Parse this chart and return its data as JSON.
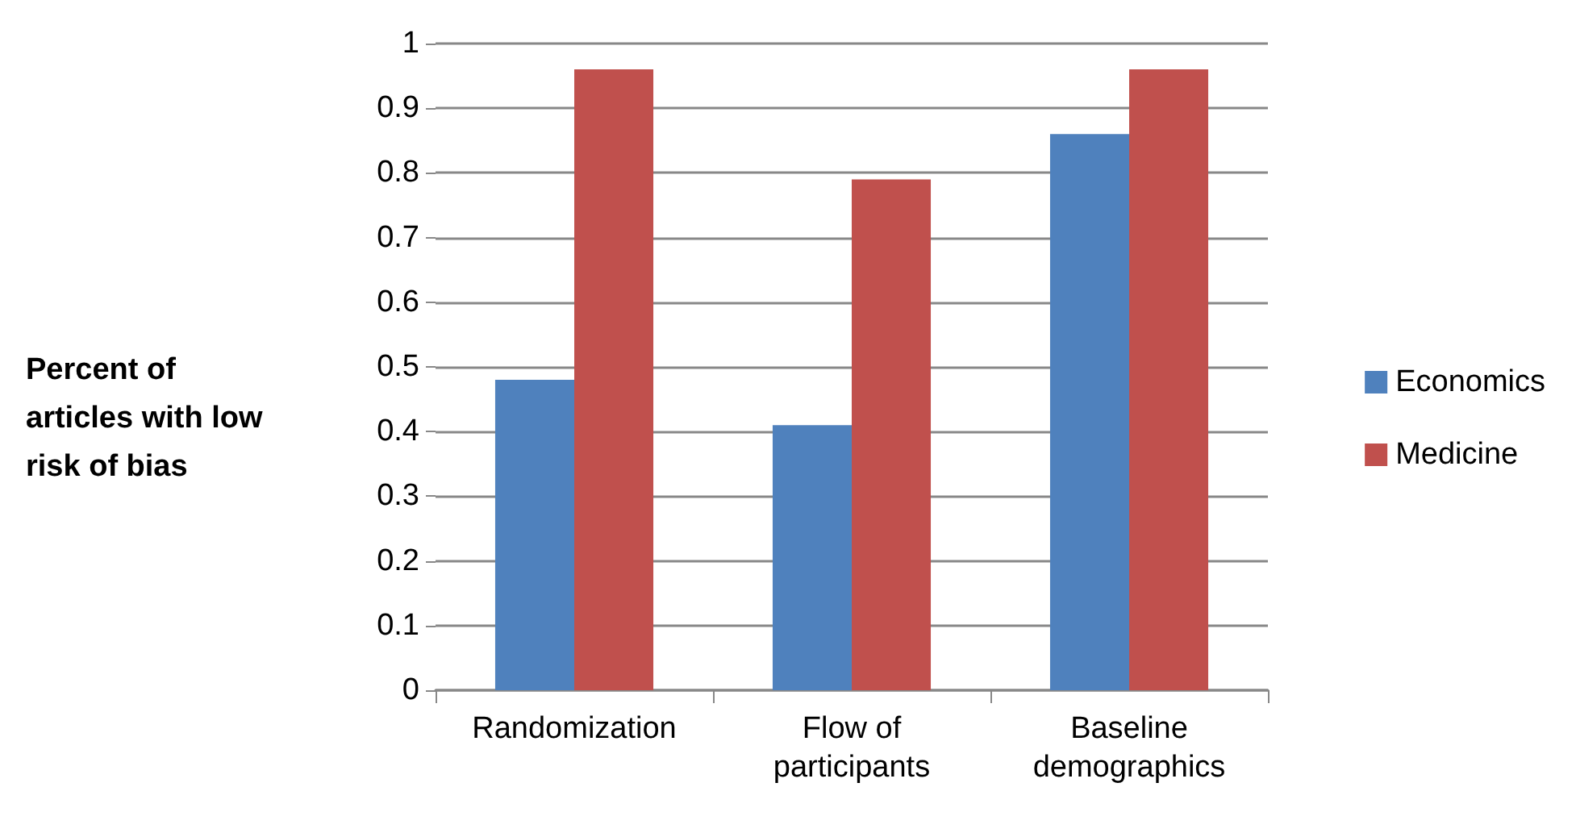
{
  "chart_data": {
    "type": "bar",
    "ylabel": "Percent of\narticles with low\nrisk of bias",
    "categories": [
      "Randomization",
      "Flow of\nparticipants",
      "Baseline\ndemographics"
    ],
    "series": [
      {
        "name": "Economics",
        "color": "#4f81bd",
        "values": [
          0.48,
          0.41,
          0.86
        ]
      },
      {
        "name": "Medicine",
        "color": "#c0504d",
        "values": [
          0.96,
          0.79,
          0.96
        ]
      }
    ],
    "ylim": [
      0,
      1
    ],
    "yticks": [
      0,
      0.1,
      0.2,
      0.3,
      0.4,
      0.5,
      0.6,
      0.7,
      0.8,
      0.9,
      1
    ],
    "grid": "y",
    "legend": "right"
  }
}
